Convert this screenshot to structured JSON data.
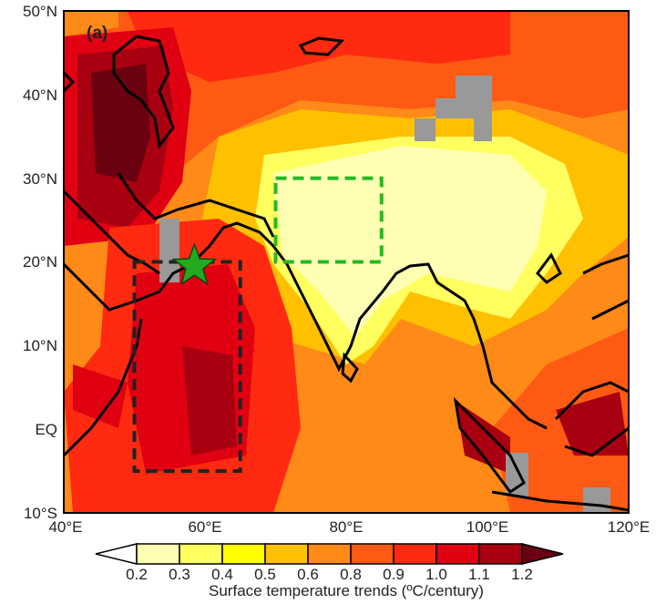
{
  "panel_label": "(a)",
  "map": {
    "lon_range": [
      40,
      120
    ],
    "lat_range": [
      -10,
      50
    ],
    "x_ticks": [
      "40°E",
      "60°E",
      "80°E",
      "100°E",
      "120°E"
    ],
    "y_ticks": [
      "50°N",
      "40°N",
      "30°N",
      "20°N",
      "10°N",
      "EQ",
      "10°S"
    ],
    "boxes": [
      {
        "color": "#22bb22",
        "lon": [
          70,
          85
        ],
        "lat": [
          20,
          30
        ]
      },
      {
        "color": "#222222",
        "lon": [
          50,
          65
        ],
        "lat": [
          -5,
          20
        ]
      }
    ],
    "star": {
      "color": "#22aa22",
      "lon": 58.5,
      "lat": 19.5
    },
    "missing_color": "#999999"
  },
  "colorbar": {
    "levels": [
      "0.2",
      "0.3",
      "0.4",
      "0.5",
      "0.6",
      "0.8",
      "0.9",
      "1.0",
      "1.1",
      "1.2"
    ],
    "colors": [
      "#ffffff",
      "#ffffb4",
      "#ffff60",
      "#ffff00",
      "#ffc000",
      "#ff8a18",
      "#ff5a14",
      "#ff2a10",
      "#e00012",
      "#a80010",
      "#6a0010"
    ],
    "label": "Surface temperature trends (ºC/century)"
  }
}
